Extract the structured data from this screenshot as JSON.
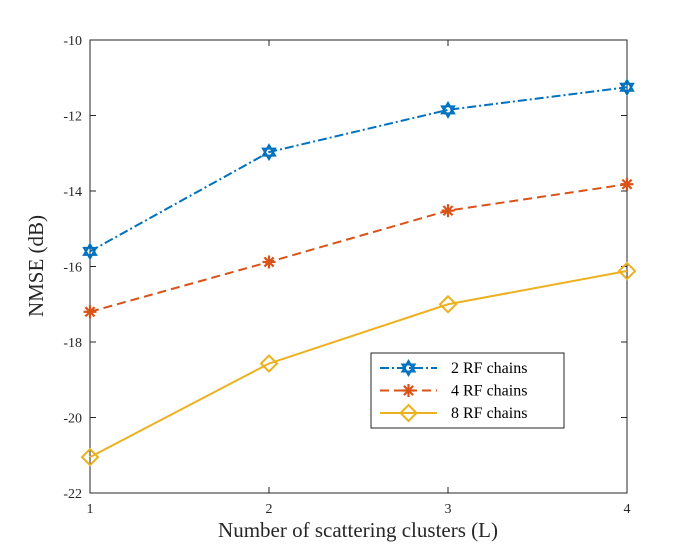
{
  "chart_data": {
    "type": "line",
    "title": "",
    "xlabel": "Number of scattering clusters (L)",
    "ylabel": "NMSE (dB)",
    "x": [
      1,
      2,
      3,
      4
    ],
    "xlim": [
      1,
      4
    ],
    "ylim": [
      -22,
      -10
    ],
    "xticks": [
      1,
      2,
      3,
      4
    ],
    "yticks": [
      -22,
      -20,
      -18,
      -16,
      -14,
      -12,
      -10
    ],
    "grid": false,
    "legend_position": "lower-right",
    "series": [
      {
        "name": "2 RF chains",
        "values": [
          -15.6,
          -12.97,
          -11.85,
          -11.25
        ],
        "color": "#0072BD",
        "line_style": "dash-dot",
        "marker": "hexagram"
      },
      {
        "name": "4 RF chains",
        "values": [
          -17.2,
          -15.88,
          -14.52,
          -13.82
        ],
        "color": "#D95319",
        "line_style": "dashed",
        "marker": "asterisk"
      },
      {
        "name": "8 RF chains",
        "values": [
          -21.05,
          -18.57,
          -17.0,
          -16.12
        ],
        "color": "#EDB120",
        "line_style": "solid",
        "marker": "diamond"
      }
    ]
  }
}
